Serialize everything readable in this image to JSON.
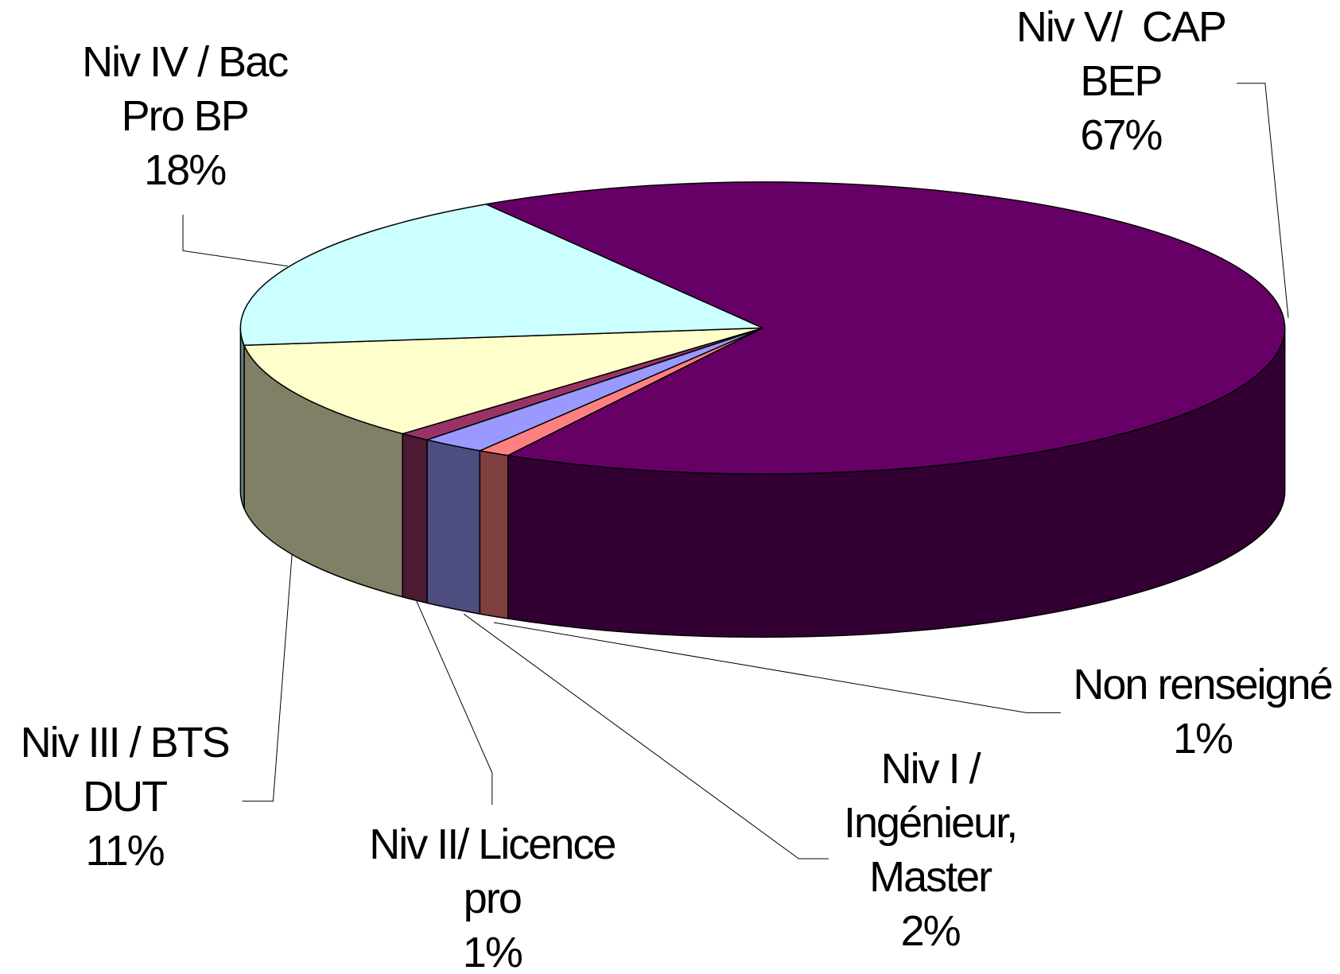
{
  "chart_data": {
    "type": "pie3d",
    "categories": [
      "Niv V/  CAP\nBEP",
      "Non renseigné",
      "Niv I /\nIngénieur,\nMaster",
      "Niv II/ Licence\npro",
      "Niv III / BTS\nDUT",
      "Niv IV / Bac\nPro BP"
    ],
    "values": [
      67,
      1,
      2,
      1,
      11,
      18
    ],
    "value_labels": [
      "67%",
      "1%",
      "2%",
      "1%",
      "11%",
      "18%"
    ],
    "colors": [
      "#660066",
      "#ff8080",
      "#9999ff",
      "#993366",
      "#ffffcc",
      "#ccffff"
    ],
    "side_colors": [
      "#330033",
      "#804040",
      "#4d4d80",
      "#4d1a33",
      "#808066",
      "#668080"
    ]
  }
}
